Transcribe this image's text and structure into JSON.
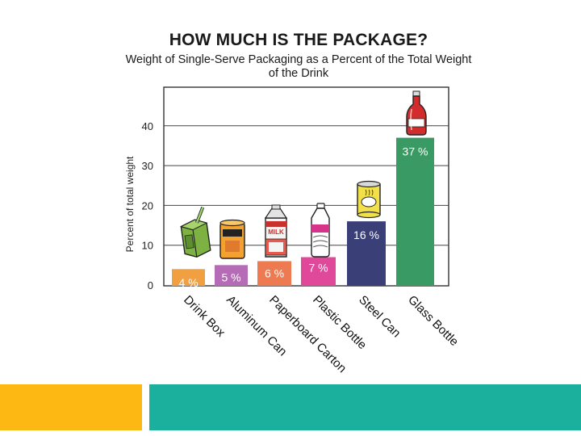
{
  "slide": {
    "accent_left": "#FDB813",
    "accent_right": "#1AB09D"
  },
  "chart_data": {
    "type": "bar",
    "title": "HOW MUCH IS THE PACKAGE?",
    "subtitle": "Weight of Single-Serve Packaging as a Percent of the Total Weight of the Drink",
    "ylabel": "Percent of total weight",
    "xlabel": "",
    "ylim": [
      0,
      48
    ],
    "yticks": [
      "0",
      "10",
      "20",
      "30",
      "40"
    ],
    "grid": true,
    "categories": [
      "Drink Box",
      "Aluminum Can",
      "Paperboard Carton",
      "Plastic Bottle",
      "Steel Can",
      "Glass Bottle"
    ],
    "values": [
      4,
      5,
      6,
      7,
      16,
      37
    ],
    "data_labels": [
      "4 %",
      "5 %",
      "6 %",
      "7 %",
      "16 %",
      "37 %"
    ],
    "colors": [
      "#F0A040",
      "#B56BB5",
      "#EE7A52",
      "#E0489A",
      "#3A3F78",
      "#3A9A63"
    ],
    "icons": [
      "drink-box-icon",
      "aluminum-can-icon",
      "milk-carton-icon",
      "plastic-bottle-icon",
      "steel-can-icon",
      "glass-bottle-icon"
    ],
    "icon_text": {
      "carton": "MILK"
    }
  }
}
